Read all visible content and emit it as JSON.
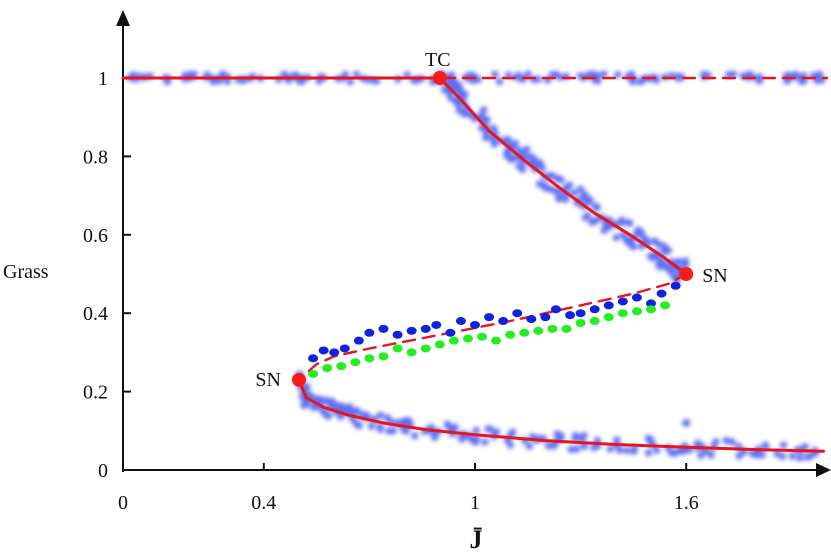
{
  "chart_data": {
    "type": "scatter",
    "title": "",
    "xlabel": "J̄",
    "ylabel": "Grass",
    "xlim": [
      0,
      2.0
    ],
    "ylim": [
      0,
      1.1
    ],
    "x_ticks": [
      {
        "value": 0,
        "label": "0"
      },
      {
        "value": 0.4,
        "label": "0.4"
      },
      {
        "value": 1,
        "label": "1"
      },
      {
        "value": 1.6,
        "label": "1.6"
      }
    ],
    "y_ticks": [
      {
        "value": 0,
        "label": "0"
      },
      {
        "value": 0.2,
        "label": "0.2"
      },
      {
        "value": 0.4,
        "label": "0.4"
      },
      {
        "value": 0.6,
        "label": "0.6"
      },
      {
        "value": 0.8,
        "label": "0.8"
      },
      {
        "value": 1,
        "label": "1"
      }
    ],
    "grid": false,
    "colors": {
      "stable": "#e8141e",
      "simulation_points": "#4455ee",
      "upper_branch_points": "#1022dd",
      "lower_branch_points": "#22ee22",
      "bifurcation_points": "#ff1a1a"
    },
    "curves": [
      {
        "style": "dashed",
        "x": [
          0.0,
          2.0
        ],
        "y": [
          1.0,
          1.0
        ]
      },
      {
        "style": "solid",
        "x": [
          0.0,
          0.9
        ],
        "y": [
          1.0,
          1.0
        ]
      },
      {
        "style": "solid",
        "x": [
          0.9,
          0.96,
          1.04,
          1.14,
          1.24,
          1.34,
          1.44,
          1.54,
          1.6
        ],
        "y": [
          1.0,
          0.945,
          0.865,
          0.79,
          0.72,
          0.655,
          0.6,
          0.54,
          0.5
        ]
      },
      {
        "style": "dashed",
        "x": [
          1.6,
          1.55,
          1.45,
          1.3,
          1.1,
          0.9,
          0.7,
          0.6,
          0.55,
          0.5
        ],
        "y": [
          0.5,
          0.475,
          0.45,
          0.42,
          0.38,
          0.345,
          0.31,
          0.29,
          0.27,
          0.23
        ]
      },
      {
        "style": "solid",
        "x": [
          0.5,
          0.52,
          0.57,
          0.64,
          0.74,
          0.86,
          1.0,
          1.2,
          1.4,
          1.6,
          1.8,
          1.99
        ],
        "y": [
          0.23,
          0.185,
          0.16,
          0.14,
          0.12,
          0.103,
          0.09,
          0.075,
          0.065,
          0.058,
          0.052,
          0.048
        ]
      }
    ],
    "scatter_series": [
      {
        "color_key": "upper_branch_points",
        "x": [
          0.54,
          0.57,
          0.6,
          0.63,
          0.67,
          0.7,
          0.74,
          0.78,
          0.82,
          0.86,
          0.89,
          0.93,
          0.96,
          1.0,
          1.04,
          1.08,
          1.12,
          1.16,
          1.2,
          1.23,
          1.27,
          1.3,
          1.34,
          1.38,
          1.42,
          1.46,
          1.5,
          1.53,
          1.57
        ],
        "y": [
          0.285,
          0.305,
          0.3,
          0.31,
          0.33,
          0.35,
          0.36,
          0.345,
          0.355,
          0.36,
          0.37,
          0.35,
          0.38,
          0.37,
          0.39,
          0.38,
          0.4,
          0.385,
          0.39,
          0.41,
          0.395,
          0.4,
          0.41,
          0.42,
          0.43,
          0.44,
          0.425,
          0.45,
          0.47
        ]
      },
      {
        "color_key": "lower_branch_points",
        "x": [
          0.54,
          0.58,
          0.62,
          0.66,
          0.7,
          0.74,
          0.78,
          0.82,
          0.86,
          0.9,
          0.94,
          0.98,
          1.02,
          1.06,
          1.1,
          1.14,
          1.18,
          1.22,
          1.26,
          1.3,
          1.34,
          1.38,
          1.42,
          1.46,
          1.5,
          1.54
        ],
        "y": [
          0.245,
          0.26,
          0.265,
          0.275,
          0.285,
          0.29,
          0.31,
          0.3,
          0.31,
          0.32,
          0.33,
          0.335,
          0.34,
          0.33,
          0.345,
          0.35,
          0.355,
          0.36,
          0.36,
          0.375,
          0.38,
          0.39,
          0.4,
          0.405,
          0.41,
          0.42
        ]
      }
    ],
    "bifurcation_points": [
      {
        "label": "TC",
        "x": 0.9,
        "y": 1.0
      },
      {
        "label": "SN",
        "x": 1.6,
        "y": 0.5
      },
      {
        "label": "SN",
        "x": 0.5,
        "y": 0.23
      }
    ]
  }
}
